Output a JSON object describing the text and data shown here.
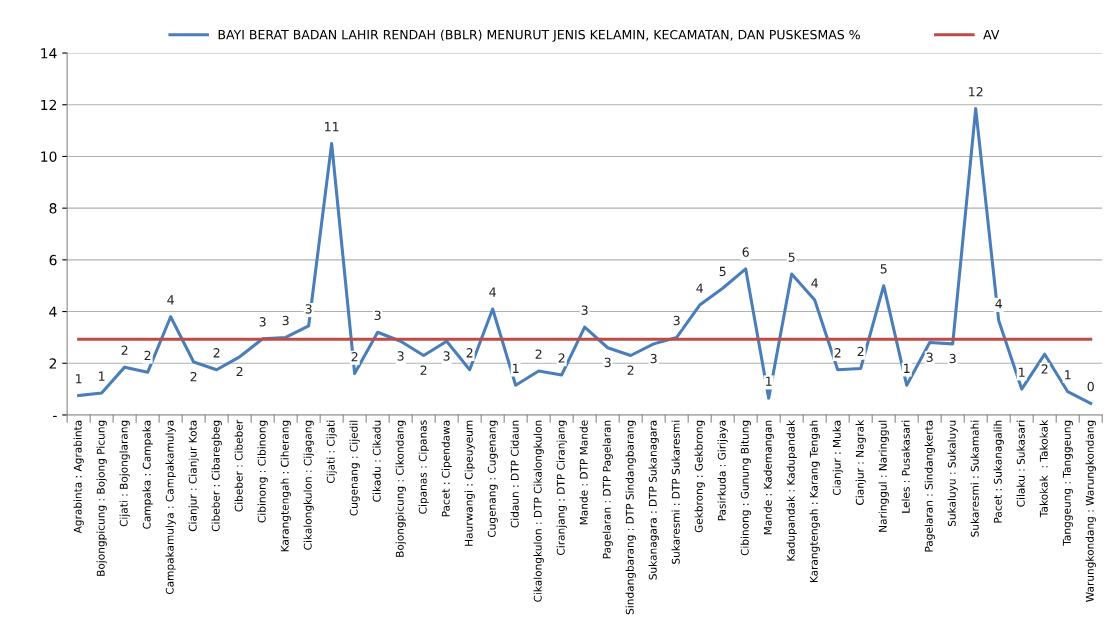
{
  "chart_data": {
    "type": "line",
    "categories": [
      "Agrabinta : Agrabinta",
      "Bojongpicung : Bojong Picung",
      "Cijati : Bojonglarang",
      "Campaka : Campaka",
      "Campakamulya : Campakamulya",
      "Cianjur : Cianjur Kota",
      "Cibeber : Cibaregbeg",
      "Cibeber : Cibeber",
      "Cibinong : Cibinong",
      "Karangtengah : Ciherang",
      "Cikalongkulon : Cijagang",
      "Cijati : Cijati",
      "Cugenang : Cijedil",
      "Cikadu : Cikadu",
      "Bojongpicung : Cikondang",
      "Cipanas : Cipanas",
      "Pacet : Cipendawa",
      "Haurwangi : Cipeuyeum",
      "Cugenang : Cugenang",
      "Cidaun : DTP Cidaun",
      "Cikalongkulon : DTP Cikalongkulon",
      "Ciranjang : DTP Ciranjang",
      "Mande : DTP Mande",
      "Pagelaran : DTP Pagelaran",
      "Sindangbarang : DTP Sindangbarang",
      "Sukanagara : DTP Sukanagara",
      "Sukaresmi : DTP Sukaresmi",
      "Gekbrong : Gekbrong",
      "Pasirkuda : Girijaya",
      "Cibinong : Gunung Bitung",
      "Mande : Kademangan",
      "Kadupandak : Kadupandak",
      "Karangtengah : Karang Tengah",
      "Cianjur : Muka",
      "Cianjur : Nagrak",
      "Naringgul : Naringgul",
      "Leles : Pusakasari",
      "Pagelaran : Sindangkerta",
      "Sukaluyu : Sukaluyu",
      "Sukaresmi : Sukamahi",
      "Pacet : Sukanagalih",
      "Cilaku : Sukasari",
      "Takokak  : Takokak",
      "Tanggeung : Tanggeung",
      "Warungkondang : Warungkondang"
    ],
    "series": [
      {
        "name": "BAYI BERAT BADAN LAHIR RENDAH (BBLR) MENURUT JENIS KELAMIN, KECAMATAN, DAN PUSKESMAS %",
        "color": "#4a7ebb",
        "values": [
          0.75,
          0.85,
          1.85,
          1.65,
          3.8,
          2.05,
          1.75,
          2.25,
          2.95,
          3.0,
          3.45,
          10.5,
          1.6,
          3.2,
          2.85,
          2.3,
          2.85,
          1.75,
          4.1,
          1.15,
          1.7,
          1.55,
          3.4,
          2.6,
          2.3,
          2.75,
          3.0,
          4.25,
          4.9,
          5.65,
          0.65,
          5.45,
          4.45,
          1.75,
          1.8,
          5.0,
          1.15,
          2.8,
          2.75,
          11.85,
          3.65,
          1.0,
          2.35,
          0.9,
          0.45
        ],
        "value_labels": [
          "1",
          "1",
          "2",
          "2",
          "4",
          "2",
          "2",
          "2",
          "3",
          "3",
          "3",
          "11",
          "2",
          "3",
          "3",
          "2",
          "3",
          "2",
          "4",
          "1",
          "2",
          "2",
          "3",
          "3",
          "2",
          "3",
          "3",
          "4",
          "5",
          "6",
          "1",
          "5",
          "4",
          "2",
          "2",
          "5",
          "1",
          "3",
          "3",
          "12",
          "4",
          "1",
          "2",
          "1",
          "0"
        ]
      },
      {
        "name": "AV",
        "color": "#be4b48",
        "values": [
          2.93,
          2.93,
          2.93,
          2.93,
          2.93,
          2.93,
          2.93,
          2.93,
          2.93,
          2.93,
          2.93,
          2.93,
          2.93,
          2.93,
          2.93,
          2.93,
          2.93,
          2.93,
          2.93,
          2.93,
          2.93,
          2.93,
          2.93,
          2.93,
          2.93,
          2.93,
          2.93,
          2.93,
          2.93,
          2.93,
          2.93,
          2.93,
          2.93,
          2.93,
          2.93,
          2.93,
          2.93,
          2.93,
          2.93,
          2.93,
          2.93,
          2.93,
          2.93,
          2.93,
          2.93
        ]
      }
    ],
    "ylim": [
      0,
      14
    ],
    "yticks": [
      {
        "value": 0,
        "label": "-"
      },
      2,
      4,
      6,
      8,
      10,
      12,
      14
    ],
    "grid": "y",
    "legend": "top",
    "marker": "none",
    "line_style": "solid"
  }
}
